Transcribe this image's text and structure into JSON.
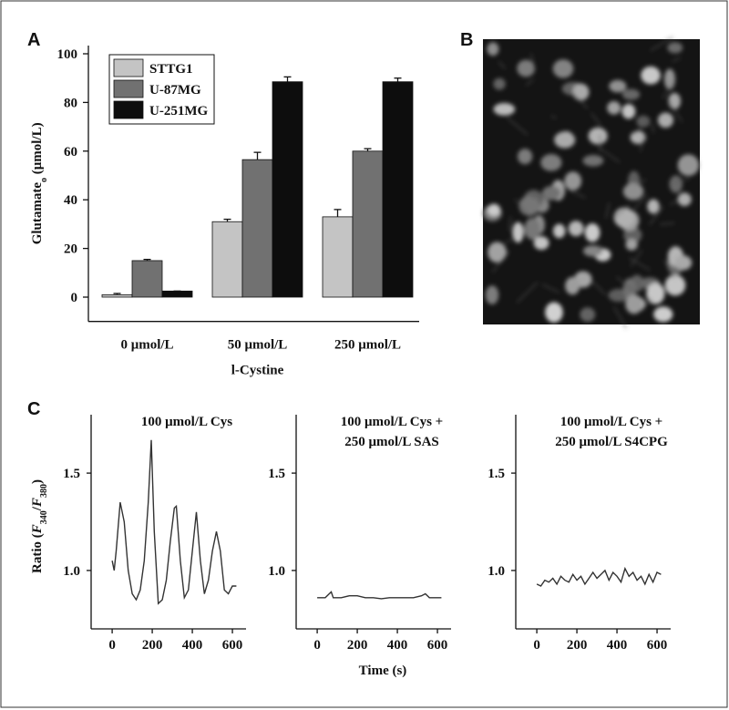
{
  "image_panel": {
    "label": "B"
  },
  "chart_data": [
    {
      "type": "bar",
      "panel": "A",
      "y_label": [
        {
          "text": "Glutamate",
          "style": "plain"
        },
        {
          "text": "o",
          "style": "sub"
        },
        {
          "text": " (μmol/L)",
          "style": "plain"
        }
      ],
      "x_label": "l-Cystine",
      "categories": [
        "0 μmol/L",
        "50 μmol/L",
        "250 μmol/L"
      ],
      "series": [
        {
          "name": "STTG1",
          "color": "#c4c4c4",
          "values": [
            1,
            31,
            33
          ],
          "errors": [
            0.5,
            1,
            3
          ]
        },
        {
          "name": "U-87MG",
          "color": "#717171",
          "values": [
            15,
            56.5,
            60
          ],
          "errors": [
            0.5,
            3,
            1
          ]
        },
        {
          "name": "U-251MG",
          "color": "#0d0d0d",
          "values": [
            2.5,
            88.5,
            88.5
          ],
          "errors": [
            0,
            2,
            1.5
          ]
        }
      ],
      "ylim": [
        -10,
        100
      ],
      "yticks": [
        0,
        20,
        40,
        60,
        80,
        100
      ],
      "legend": "upper left"
    },
    {
      "type": "line",
      "panel": "C",
      "title": [
        "100 μmol/L Cys"
      ],
      "y_label": [
        {
          "text": "Ratio (",
          "style": "plain"
        },
        {
          "text": "F",
          "style": "italic"
        },
        {
          "text": "340",
          "style": "sub"
        },
        {
          "text": "/",
          "style": "plain"
        },
        {
          "text": "F",
          "style": "italic"
        },
        {
          "text": "380",
          "style": "sub"
        },
        {
          "text": ")",
          "style": "plain"
        }
      ],
      "x": [
        0,
        10,
        20,
        40,
        60,
        80,
        100,
        120,
        140,
        160,
        180,
        195,
        210,
        230,
        250,
        270,
        290,
        310,
        320,
        340,
        360,
        380,
        400,
        420,
        440,
        460,
        480,
        500,
        520,
        540,
        560,
        580,
        600,
        620
      ],
      "values": [
        1.05,
        1.0,
        1.1,
        1.35,
        1.25,
        1.0,
        0.88,
        0.85,
        0.9,
        1.05,
        1.35,
        1.67,
        1.2,
        0.83,
        0.85,
        0.95,
        1.15,
        1.32,
        1.33,
        1.05,
        0.86,
        0.9,
        1.1,
        1.3,
        1.05,
        0.88,
        0.95,
        1.1,
        1.2,
        1.1,
        0.9,
        0.88,
        0.92,
        0.92
      ],
      "color": "#333333",
      "xlim": [
        -105,
        668
      ],
      "xticks": [
        0,
        200,
        400,
        600
      ],
      "ylim": [
        0.7,
        1.8
      ],
      "yticks": [
        {
          "value": 1,
          "label": "1.0"
        },
        1.5
      ]
    },
    {
      "type": "line",
      "panel": "",
      "title": [
        "100 μmol/L Cys +",
        "250 μmol/L SAS"
      ],
      "x_label": "Time (s)",
      "x": [
        0,
        40,
        70,
        80,
        120,
        160,
        200,
        240,
        280,
        320,
        360,
        400,
        440,
        480,
        520,
        540,
        560,
        600,
        620
      ],
      "values": [
        0.86,
        0.86,
        0.89,
        0.86,
        0.86,
        0.87,
        0.87,
        0.86,
        0.86,
        0.855,
        0.86,
        0.86,
        0.86,
        0.86,
        0.87,
        0.88,
        0.86,
        0.86,
        0.86
      ],
      "color": "#333333",
      "xlim": [
        -105,
        668
      ],
      "xticks": [
        0,
        200,
        400,
        600
      ],
      "ylim": [
        0.7,
        1.8
      ],
      "yticks": [
        {
          "value": 1,
          "label": "1.0"
        },
        1.5
      ]
    },
    {
      "type": "line",
      "panel": "",
      "title": [
        "100 μmol/L Cys +",
        "250 μmol/L S4CPG"
      ],
      "x": [
        0,
        20,
        40,
        60,
        80,
        100,
        120,
        140,
        160,
        180,
        200,
        220,
        240,
        260,
        280,
        300,
        320,
        340,
        360,
        380,
        400,
        420,
        440,
        460,
        480,
        500,
        520,
        540,
        560,
        580,
        600,
        620
      ],
      "values": [
        0.93,
        0.92,
        0.95,
        0.94,
        0.96,
        0.93,
        0.97,
        0.95,
        0.94,
        0.98,
        0.95,
        0.97,
        0.93,
        0.96,
        0.99,
        0.96,
        0.98,
        1.0,
        0.95,
        0.99,
        0.97,
        0.94,
        1.01,
        0.97,
        0.99,
        0.95,
        0.97,
        0.93,
        0.98,
        0.94,
        0.99,
        0.98
      ],
      "color": "#333333",
      "xlim": [
        -105,
        668
      ],
      "xticks": [
        0,
        200,
        400,
        600
      ],
      "ylim": [
        0.7,
        1.8
      ],
      "yticks": [
        {
          "value": 1,
          "label": "1.0"
        },
        1.5
      ]
    }
  ]
}
